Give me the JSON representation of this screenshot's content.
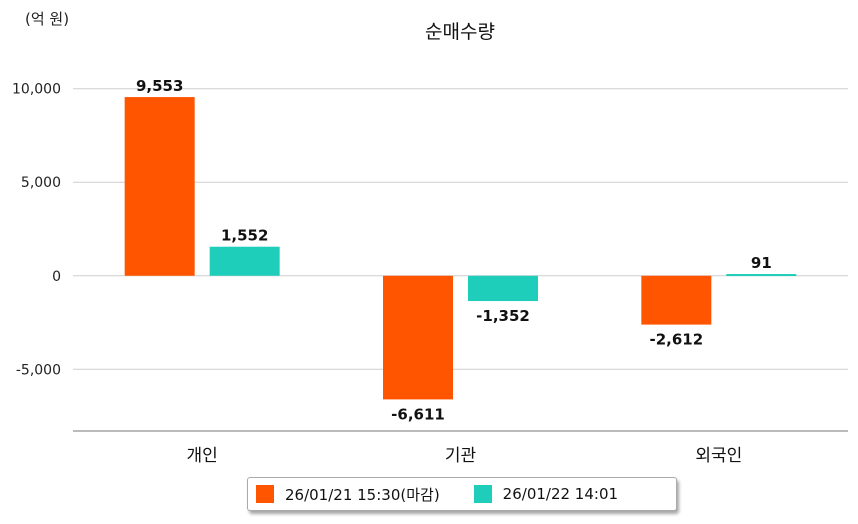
{
  "chart_data": {
    "type": "bar",
    "title": "순매수량",
    "unit_label": "(억 원)",
    "categories": [
      "개인",
      "기관",
      "외국인"
    ],
    "series": [
      {
        "name": "26/01/21 15:30(마감)",
        "color": "#FF5500",
        "values": [
          9553,
          -6611,
          -2612
        ],
        "labels": [
          "9,553",
          "-6,611",
          "-2,612"
        ]
      },
      {
        "name": "26/01/22 14:01",
        "color": "#1ECDBA",
        "values": [
          1552,
          -1352,
          91
        ],
        "labels": [
          "1,552",
          "-1,352",
          "91"
        ]
      }
    ],
    "y_ticks": [
      10000,
      5000,
      0,
      -5000
    ],
    "y_tick_labels": [
      "10,000",
      "5,000",
      "0",
      "-5,000"
    ],
    "ylim": [
      -8300,
      11000
    ],
    "grid": true,
    "legend_position": "bottom"
  }
}
